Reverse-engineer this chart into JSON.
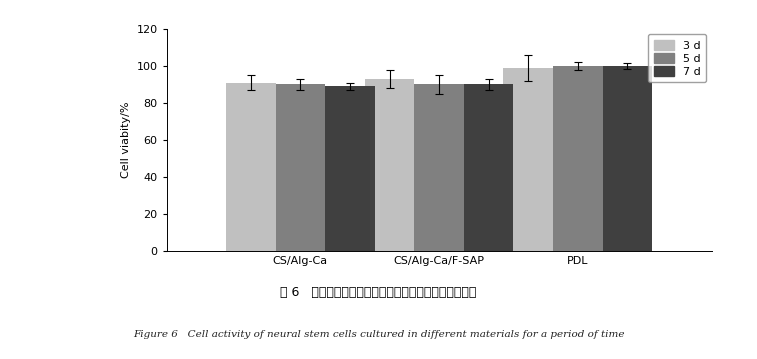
{
  "groups": [
    "CS/Alg-Ca",
    "CS/Alg-Ca/F-SAP",
    "PDL"
  ],
  "days": [
    "3 d",
    "5 d",
    "7 d"
  ],
  "bar_colors": [
    "#c0c0c0",
    "#808080",
    "#404040"
  ],
  "values": [
    [
      91,
      90,
      89
    ],
    [
      93,
      90,
      90
    ],
    [
      99,
      100,
      100
    ]
  ],
  "errors": [
    [
      4,
      3,
      2
    ],
    [
      5,
      5,
      3
    ],
    [
      7,
      2,
      1.5
    ]
  ],
  "ylabel": "Cell viabity/%",
  "ylim": [
    0,
    120
  ],
  "yticks": [
    0,
    20,
    40,
    60,
    80,
    100,
    120
  ],
  "bar_width": 0.25,
  "group_positions": [
    0.3,
    1.0,
    1.7
  ],
  "legend_loc": "upper right",
  "background_color": "#ffffff",
  "caption_zh": "图 6   神经干细胞在不同材料中培养一段时间的细胞活性",
  "caption_en": "Figure 6   Cell activity of neural stem cells cultured in different materials for a period of time"
}
